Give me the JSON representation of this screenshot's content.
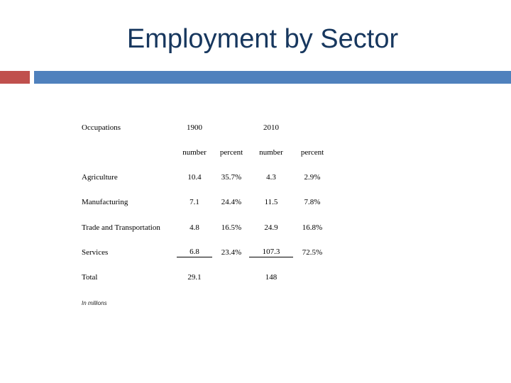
{
  "slide": {
    "title": "Employment by Sector",
    "accent_colors": {
      "left_bar": "#c0504d",
      "right_bar": "#4f81bd",
      "title": "#17375e"
    }
  },
  "table": {
    "header": {
      "occupations": "Occupations",
      "year1": "1900",
      "year2": "2010",
      "sub": [
        "number",
        "percent",
        "number",
        "percent"
      ]
    },
    "rows": [
      {
        "label": "Agriculture",
        "n1900": "10.4",
        "p1900": "35.7%",
        "n2010": "4.3",
        "p2010": "2.9%"
      },
      {
        "label": "Manufacturing",
        "n1900": "7.1",
        "p1900": "24.4%",
        "n2010": "11.5",
        "p2010": "7.8%"
      },
      {
        "label": "Trade and Transportation",
        "n1900": "4.8",
        "p1900": "16.5%",
        "n2010": "24.9",
        "p2010": "16.8%"
      },
      {
        "label": "Services",
        "n1900": "6.8",
        "p1900": "23.4%",
        "n2010": "107.3",
        "p2010": "72.5%"
      }
    ],
    "total": {
      "label": "Total",
      "n1900": "29.1",
      "n2010": "148"
    },
    "note": "In millions"
  }
}
